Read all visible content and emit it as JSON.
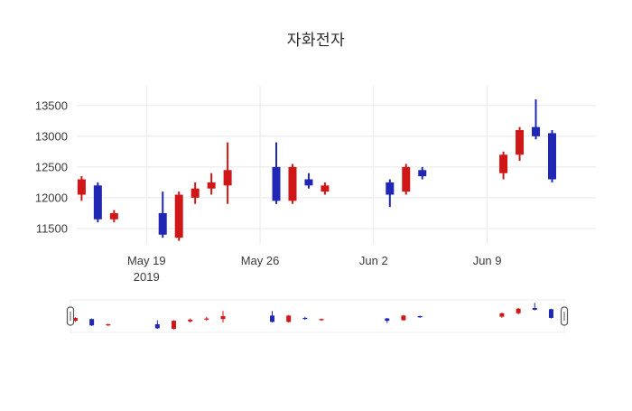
{
  "chart_data": {
    "type": "candlestick",
    "title": "자화전자",
    "xlabel": "",
    "ylabel": "",
    "legend": "none",
    "grid": true,
    "y_ticks": [
      11500,
      12000,
      12500,
      13000,
      13500
    ],
    "x_ticks": [
      {
        "label": "May 19",
        "sublabel": "2019",
        "day": 4
      },
      {
        "label": "May 26",
        "sublabel": "",
        "day": 11
      },
      {
        "label": "Jun 2",
        "sublabel": "",
        "day": 18
      },
      {
        "label": "Jun 9",
        "sublabel": "",
        "day": 25
      }
    ],
    "ylim": [
      11250,
      13820
    ],
    "xlim_days": [
      -0.3,
      31.7
    ],
    "slider_xlim_days": [
      -0.3,
      29.8
    ],
    "slider_ylim": [
      11200,
      13700
    ],
    "colors": {
      "up": "#d01717",
      "down": "#1f27b4",
      "grid": "#e8e8e8",
      "axis_text": "#3a3a3a",
      "background": "#ffffff",
      "slider_handle_stroke": "#555555"
    },
    "candles": [
      {
        "date": "May 15",
        "day": 0,
        "open": 12050,
        "high": 12350,
        "low": 11950,
        "close": 12300
      },
      {
        "date": "May 16",
        "day": 1,
        "open": 12200,
        "high": 12250,
        "low": 11600,
        "close": 11650
      },
      {
        "date": "May 17",
        "day": 2,
        "open": 11650,
        "high": 11800,
        "low": 11600,
        "close": 11750
      },
      {
        "date": "May 20",
        "day": 5,
        "open": 11750,
        "high": 12100,
        "low": 11350,
        "close": 11400
      },
      {
        "date": "May 21",
        "day": 6,
        "open": 11350,
        "high": 12100,
        "low": 11300,
        "close": 12050
      },
      {
        "date": "May 22",
        "day": 7,
        "open": 12000,
        "high": 12250,
        "low": 11900,
        "close": 12150
      },
      {
        "date": "May 23",
        "day": 8,
        "open": 12150,
        "high": 12400,
        "low": 12050,
        "close": 12250
      },
      {
        "date": "May 24",
        "day": 9,
        "open": 12200,
        "high": 12900,
        "low": 11900,
        "close": 12450
      },
      {
        "date": "May 27",
        "day": 12,
        "open": 12500,
        "high": 12900,
        "low": 11900,
        "close": 11950
      },
      {
        "date": "May 28",
        "day": 13,
        "open": 11950,
        "high": 12550,
        "low": 11900,
        "close": 12500
      },
      {
        "date": "May 29",
        "day": 14,
        "open": 12300,
        "high": 12400,
        "low": 12150,
        "close": 12200
      },
      {
        "date": "May 30",
        "day": 15,
        "open": 12100,
        "high": 12250,
        "low": 12050,
        "close": 12200
      },
      {
        "date": "Jun 3",
        "day": 19,
        "open": 12250,
        "high": 12300,
        "low": 11850,
        "close": 12050
      },
      {
        "date": "Jun 4",
        "day": 20,
        "open": 12100,
        "high": 12550,
        "low": 12050,
        "close": 12500
      },
      {
        "date": "Jun 5",
        "day": 21,
        "open": 12450,
        "high": 12500,
        "low": 12300,
        "close": 12350
      },
      {
        "date": "Jun 10",
        "day": 26,
        "open": 12400,
        "high": 12750,
        "low": 12300,
        "close": 12700
      },
      {
        "date": "Jun 11",
        "day": 27,
        "open": 12700,
        "high": 13150,
        "low": 12600,
        "close": 13100
      },
      {
        "date": "Jun 12",
        "day": 28,
        "open": 13150,
        "high": 13600,
        "low": 12950,
        "close": 13000
      },
      {
        "date": "Jun 13",
        "day": 29,
        "open": 13050,
        "high": 13100,
        "low": 12250,
        "close": 12300
      }
    ]
  }
}
